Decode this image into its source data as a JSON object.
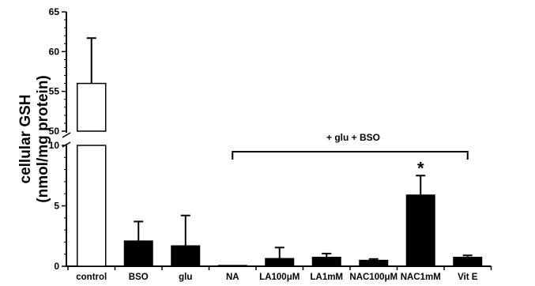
{
  "chart_data": {
    "type": "bar",
    "ylabel_line1": "cellular GSH",
    "ylabel_line2": "(nmol/mg protein)",
    "categories": [
      "control",
      "BSO",
      "glu",
      "NA",
      "LA100μM",
      "LA1mM",
      "NAC100μM",
      "NAC1mM",
      "Vit E"
    ],
    "values": [
      56.0,
      2.1,
      1.7,
      0.05,
      0.65,
      0.75,
      0.5,
      5.9,
      0.75
    ],
    "errors": [
      5.7,
      1.6,
      2.5,
      0.0,
      0.9,
      0.3,
      0.1,
      1.6,
      0.15
    ],
    "fill": [
      "white",
      "black",
      "black",
      "black",
      "black",
      "black",
      "black",
      "black",
      "black"
    ],
    "axis_break": true,
    "lower_ylim": [
      0,
      10
    ],
    "lower_yticks": [
      0,
      5,
      10
    ],
    "upper_ylim": [
      50,
      65
    ],
    "upper_yticks": [
      50,
      55,
      60,
      65
    ],
    "bracket_label": "+ glu + BSO",
    "bracket_from": "NA",
    "bracket_to": "Vit E",
    "significance": {
      "category": "NAC1mM",
      "marker": "*"
    },
    "colors": {
      "bar_dark": "#000000",
      "bar_light": "#ffffff",
      "axis": "#000000"
    }
  }
}
